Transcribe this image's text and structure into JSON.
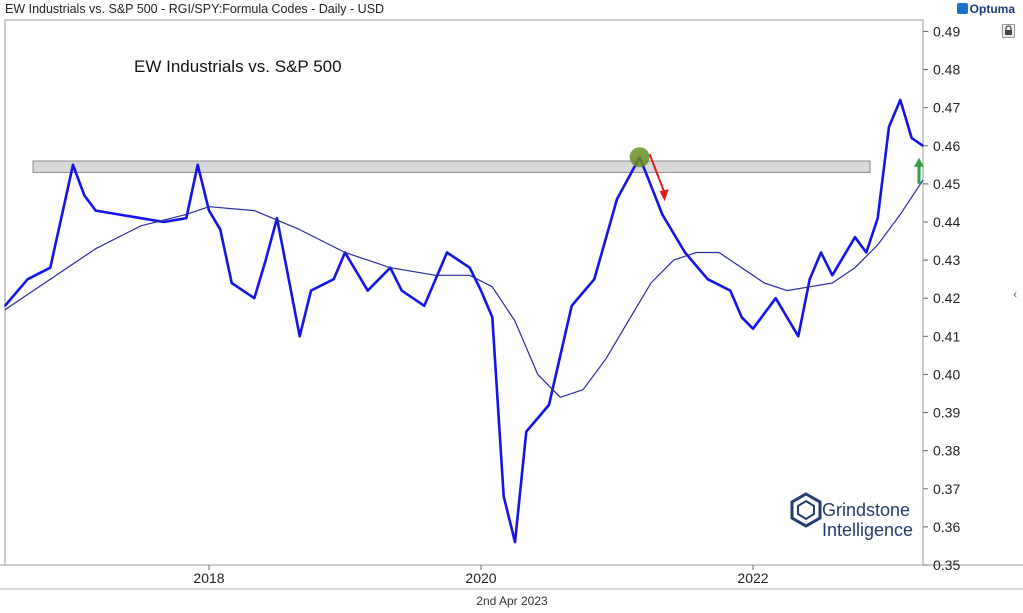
{
  "header": {
    "title": "EW Industrials vs. S&P 500 - RGI/SPY:Formula Codes - Daily - USD",
    "brand": "Optuma"
  },
  "watermark": {
    "line1": "Grindstone",
    "line2": "Intelligence"
  },
  "footer": {
    "date": "2nd Apr 2023"
  },
  "colors": {
    "price_line": "#1414e6",
    "moving_average": "#2a2aa0",
    "resistance_band": "#d9d9d9",
    "peak_marker": "#6b8e23",
    "down_arrow": "#e01b1b",
    "up_arrow": "#2ea043"
  },
  "chart_data": {
    "type": "line",
    "title": "EW Industrials vs. S&P 500",
    "xlabel": "",
    "ylabel": "",
    "x_tick_labels": [
      "2018",
      "2020",
      "2022"
    ],
    "y_tick_labels": [
      "0.35",
      "0.36",
      "0.37",
      "0.38",
      "0.39",
      "0.40",
      "0.41",
      "0.42",
      "0.43",
      "0.44",
      "0.45",
      "0.46",
      "0.47",
      "0.48",
      "0.49"
    ],
    "ylim": [
      0.35,
      0.493
    ],
    "xlim": [
      "2016-07",
      "2023-04"
    ],
    "y_axis_side": "right",
    "grid": false,
    "resistance_band": [
      0.453,
      0.456
    ],
    "series": [
      {
        "kind": "price",
        "x": [
          "2016-07",
          "2016-09",
          "2016-11",
          "2017-01",
          "2017-02",
          "2017-03",
          "2017-05",
          "2017-07",
          "2017-09",
          "2017-11",
          "2017-12",
          "2018-01",
          "2018-02",
          "2018-03",
          "2018-05",
          "2018-06",
          "2018-07",
          "2018-09",
          "2018-10",
          "2018-12",
          "2019-01",
          "2019-03",
          "2019-05",
          "2019-06",
          "2019-08",
          "2019-10",
          "2019-12",
          "2020-01",
          "2020-02",
          "2020-03",
          "2020-04",
          "2020-05",
          "2020-07",
          "2020-09",
          "2020-11",
          "2021-01",
          "2021-03",
          "2021-05",
          "2021-07",
          "2021-09",
          "2021-11",
          "2021-12",
          "2022-01",
          "2022-03",
          "2022-05",
          "2022-06",
          "2022-07",
          "2022-08",
          "2022-10",
          "2022-11",
          "2022-12",
          "2023-01",
          "2023-02",
          "2023-03",
          "2023-04"
        ],
        "values": [
          0.418,
          0.425,
          0.428,
          0.455,
          0.447,
          0.443,
          0.442,
          0.441,
          0.44,
          0.441,
          0.455,
          0.443,
          0.438,
          0.424,
          0.42,
          0.43,
          0.441,
          0.41,
          0.422,
          0.425,
          0.432,
          0.422,
          0.428,
          0.422,
          0.418,
          0.432,
          0.428,
          0.422,
          0.415,
          0.368,
          0.356,
          0.385,
          0.392,
          0.418,
          0.425,
          0.446,
          0.457,
          0.442,
          0.432,
          0.425,
          0.422,
          0.415,
          0.412,
          0.42,
          0.41,
          0.425,
          0.432,
          0.426,
          0.436,
          0.432,
          0.441,
          0.465,
          0.472,
          0.462,
          0.46
        ]
      },
      {
        "kind": "moving_average",
        "x": [
          "2016-07",
          "2016-11",
          "2017-03",
          "2017-07",
          "2017-11",
          "2018-01",
          "2018-05",
          "2018-09",
          "2019-01",
          "2019-05",
          "2019-09",
          "2019-12",
          "2020-02",
          "2020-04",
          "2020-06",
          "2020-08",
          "2020-10",
          "2020-12",
          "2021-02",
          "2021-04",
          "2021-06",
          "2021-08",
          "2021-10",
          "2021-12",
          "2022-02",
          "2022-04",
          "2022-06",
          "2022-08",
          "2022-10",
          "2022-12",
          "2023-02",
          "2023-04"
        ],
        "values": [
          0.417,
          0.425,
          0.433,
          0.439,
          0.442,
          0.444,
          0.443,
          0.438,
          0.432,
          0.428,
          0.426,
          0.426,
          0.423,
          0.414,
          0.4,
          0.394,
          0.396,
          0.404,
          0.414,
          0.424,
          0.43,
          0.432,
          0.432,
          0.428,
          0.424,
          0.422,
          0.423,
          0.424,
          0.428,
          0.434,
          0.442,
          0.451
        ]
      }
    ]
  }
}
